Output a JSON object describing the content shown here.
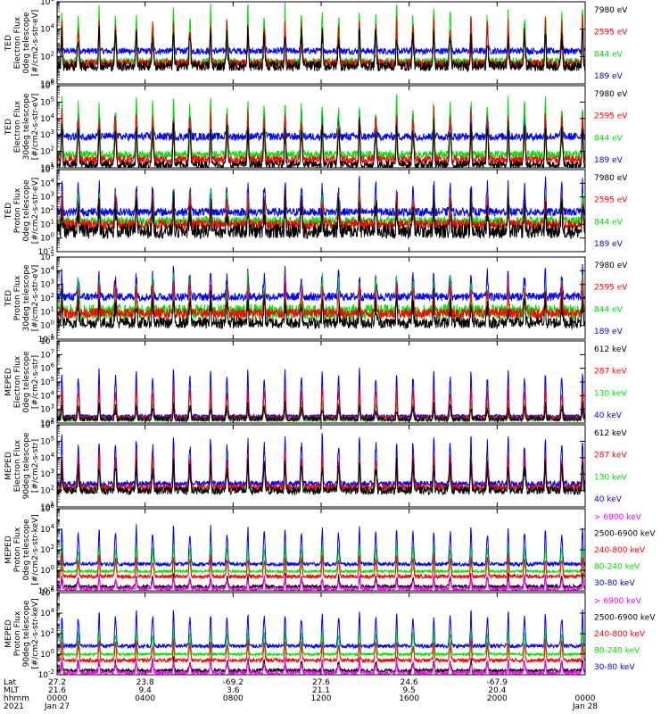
{
  "colors": {
    "black": "#000000",
    "red": "#ff0000",
    "green": "#00e000",
    "blue": "#0000ff",
    "magenta": "#ff00ff"
  },
  "chart_data": [
    {
      "type": "line",
      "ylabel": [
        "TED",
        "Electron Flux",
        "0deg telescope",
        "[#/cm2-s-str-eV]"
      ],
      "ylog": true,
      "ylim_exp": [
        0,
        6
      ],
      "tick_exps": [
        0,
        2,
        4,
        6
      ],
      "series": [
        {
          "name": "7980 eV",
          "color": "black",
          "base_exp": 1.3,
          "peak_exp": 3.8,
          "noise": 0.6
        },
        {
          "name": "2595 eV",
          "color": "red",
          "base_exp": 1.5,
          "peak_exp": 4.5,
          "noise": 0.5
        },
        {
          "name": "844 eV",
          "color": "green",
          "base_exp": 1.6,
          "peak_exp": 5.4,
          "noise": 0.5
        },
        {
          "name": "189 eV",
          "color": "blue",
          "base_exp": 2.4,
          "peak_exp": 4.0,
          "noise": 0.4
        }
      ]
    },
    {
      "type": "line",
      "ylabel": [
        "TED",
        "Electron Flux",
        "30deg telescope",
        "[#/cm2-s-str-eV]"
      ],
      "ylog": true,
      "ylim_exp": [
        1,
        6
      ],
      "tick_exps": [
        1,
        2,
        3,
        4,
        5,
        6
      ],
      "series": [
        {
          "name": "7980 eV",
          "color": "black",
          "base_exp": 1.2,
          "peak_exp": 3.6,
          "noise": 0.4
        },
        {
          "name": "2595 eV",
          "color": "red",
          "base_exp": 1.5,
          "peak_exp": 4.2,
          "noise": 0.4
        },
        {
          "name": "844 eV",
          "color": "green",
          "base_exp": 1.8,
          "peak_exp": 5.1,
          "noise": 0.4
        },
        {
          "name": "189 eV",
          "color": "blue",
          "base_exp": 2.9,
          "peak_exp": 4.3,
          "noise": 0.4
        }
      ]
    },
    {
      "type": "line",
      "ylabel": [
        "TED",
        "Proton Flux",
        "0deg telescope",
        "[#/cm2-s-str-eV]"
      ],
      "ylog": true,
      "ylim_exp": [
        -1,
        5
      ],
      "tick_exps": [
        -1,
        0,
        1,
        2,
        3,
        4,
        5
      ],
      "series": [
        {
          "name": "7980 eV",
          "color": "black",
          "base_exp": 0.5,
          "peak_exp": 2.4,
          "noise": 0.9
        },
        {
          "name": "2595 eV",
          "color": "red",
          "base_exp": 1.0,
          "peak_exp": 2.9,
          "noise": 0.6
        },
        {
          "name": "844 eV",
          "color": "green",
          "base_exp": 1.2,
          "peak_exp": 3.0,
          "noise": 0.6
        },
        {
          "name": "189 eV",
          "color": "blue",
          "base_exp": 1.9,
          "peak_exp": 3.9,
          "noise": 0.5
        }
      ]
    },
    {
      "type": "line",
      "ylabel": [
        "TED",
        "Proton Flux",
        "30deg telescope",
        "[#/cm2-s-str-eV]"
      ],
      "ylog": true,
      "ylim_exp": [
        -1,
        5
      ],
      "tick_exps": [
        -1,
        0,
        1,
        2,
        3,
        4,
        5
      ],
      "series": [
        {
          "name": "7980 eV",
          "color": "black",
          "base_exp": 0.2,
          "peak_exp": 1.8,
          "noise": 0.7
        },
        {
          "name": "2595 eV",
          "color": "red",
          "base_exp": 0.9,
          "peak_exp": 2.7,
          "noise": 0.6
        },
        {
          "name": "844 eV",
          "color": "green",
          "base_exp": 1.0,
          "peak_exp": 2.9,
          "noise": 0.9
        },
        {
          "name": "189 eV",
          "color": "blue",
          "base_exp": 2.1,
          "peak_exp": 3.8,
          "noise": 0.5
        }
      ]
    },
    {
      "type": "line",
      "ylabel": [
        "MEPED",
        "Electron Flux",
        "0deg telescope",
        "[#/cm2-s-str]"
      ],
      "ylog": true,
      "ylim_exp": [
        2,
        8
      ],
      "tick_exps": [
        2,
        3,
        4,
        5,
        6,
        7,
        8
      ],
      "series": [
        {
          "name": "612 keV",
          "color": "black",
          "base_exp": 2.3,
          "peak_exp": 3.2,
          "noise": 0.3
        },
        {
          "name": "287 keV",
          "color": "red",
          "base_exp": 2.4,
          "peak_exp": 4.5,
          "noise": 0.2
        },
        {
          "name": "130 keV",
          "color": "green",
          "base_exp": 2.2,
          "peak_exp": 3.6,
          "noise": 0.1
        },
        {
          "name": "40 keV",
          "color": "blue",
          "base_exp": 2.5,
          "peak_exp": 5.8,
          "noise": 0.2
        }
      ]
    },
    {
      "type": "line",
      "ylabel": [
        "MEPED",
        "Electron Flux",
        "90deg telescope",
        "[#/cm2-s-str]"
      ],
      "ylog": true,
      "ylim_exp": [
        1,
        6
      ],
      "tick_exps": [
        1,
        2,
        3,
        4,
        5,
        6
      ],
      "series": [
        {
          "name": "612 keV",
          "color": "black",
          "base_exp": 2.0,
          "peak_exp": 3.6,
          "noise": 0.4
        },
        {
          "name": "287 keV",
          "color": "red",
          "base_exp": 2.2,
          "peak_exp": 4.2,
          "noise": 0.3
        },
        {
          "name": "130 keV",
          "color": "green",
          "base_exp": 2.1,
          "peak_exp": 4.0,
          "noise": 0.2
        },
        {
          "name": "40 keV",
          "color": "blue",
          "base_exp": 2.4,
          "peak_exp": 5.2,
          "noise": 0.3
        }
      ]
    },
    {
      "type": "line",
      "ylabel": [
        "MEPED",
        "Proton Flux",
        "0deg telescope",
        "[#/cm2-s-str-keV]"
      ],
      "ylog": true,
      "ylim_exp": [
        -2,
        6
      ],
      "tick_exps": [
        -2,
        0,
        2,
        4,
        6
      ],
      "series": [
        {
          "name": "> 6900 keV",
          "color": "magenta",
          "base_exp": -1.8,
          "peak_exp": -0.7,
          "noise": 0.3
        },
        {
          "name": "2500-6900 keV",
          "color": "black",
          "base_exp": -1.6,
          "peak_exp": -0.6,
          "noise": 0.3
        },
        {
          "name": "240-800 keV",
          "color": "red",
          "base_exp": -0.6,
          "peak_exp": 1.3,
          "noise": 0.3
        },
        {
          "name": "80-240 keV",
          "color": "green",
          "base_exp": -0.1,
          "peak_exp": 2.4,
          "noise": 0.2
        },
        {
          "name": "30-80 keV",
          "color": "blue",
          "base_exp": 0.6,
          "peak_exp": 4.1,
          "noise": 0.3
        }
      ]
    },
    {
      "type": "line",
      "ylabel": [
        "MEPED",
        "Proton Flux",
        "90deg telescope",
        "[#/cm2-s-str-keV]"
      ],
      "ylog": true,
      "ylim_exp": [
        -2,
        6
      ],
      "tick_exps": [
        -2,
        0,
        2,
        4,
        6
      ],
      "series": [
        {
          "name": "> 6900 keV",
          "color": "magenta",
          "base_exp": -1.8,
          "peak_exp": -0.7,
          "noise": 0.3
        },
        {
          "name": "2500-6900 keV",
          "color": "black",
          "base_exp": -1.6,
          "peak_exp": -0.6,
          "noise": 0.3
        },
        {
          "name": "240-800 keV",
          "color": "red",
          "base_exp": -0.6,
          "peak_exp": 1.2,
          "noise": 0.3
        },
        {
          "name": "80-240 keV",
          "color": "green",
          "base_exp": 0.0,
          "peak_exp": 2.3,
          "noise": 0.2
        },
        {
          "name": "30-80 keV",
          "color": "blue",
          "base_exp": 0.8,
          "peak_exp": 4.0,
          "noise": 0.3
        }
      ]
    }
  ],
  "xaxis": {
    "row_labels": [
      "Lat",
      "MLT",
      "hhmm",
      "2021"
    ],
    "ticks": [
      {
        "lat": "27.2",
        "mlt": "21.6",
        "hhmm": "0000",
        "date": "Jan 27"
      },
      {
        "lat": "23.8",
        "mlt": "9.4",
        "hhmm": "0400",
        "date": ""
      },
      {
        "lat": "-69.2",
        "mlt": "3.6",
        "hhmm": "0800",
        "date": ""
      },
      {
        "lat": "27.6",
        "mlt": "21.1",
        "hhmm": "1200",
        "date": ""
      },
      {
        "lat": "24.6",
        "mlt": "9.5",
        "hhmm": "1600",
        "date": ""
      },
      {
        "lat": "-67.9",
        "mlt": "20.4",
        "hhmm": "2000",
        "date": ""
      },
      {
        "lat": "",
        "mlt": "",
        "hhmm": "0000",
        "date": "Jan 28"
      }
    ]
  },
  "orbits_per_day": 14.2,
  "orbit_phase": 0.05
}
